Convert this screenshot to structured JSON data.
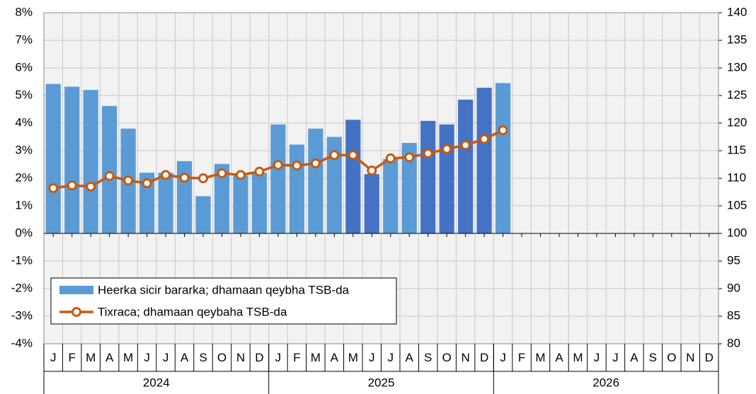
{
  "chart_data": {
    "type": "bar",
    "categories": [
      "J",
      "F",
      "M",
      "A",
      "M",
      "J",
      "J",
      "A",
      "S",
      "O",
      "N",
      "D",
      "J",
      "F",
      "M",
      "A",
      "M",
      "J",
      "J",
      "A",
      "S",
      "O",
      "N",
      "D",
      "J",
      "F",
      "M",
      "A",
      "M",
      "J",
      "J",
      "A",
      "S",
      "O",
      "N",
      "D"
    ],
    "year_labels": [
      "2024",
      "2025",
      "2026"
    ],
    "series": [
      {
        "name": "Heerka sicir bararka; dhamaan qeybha TSB-da",
        "type": "bar",
        "color": "#5b9bd5",
        "colors": [
          "#5b9bd5",
          "#5b9bd5",
          "#5b9bd5",
          "#5b9bd5",
          "#5b9bd5",
          "#5b9bd5",
          "#5b9bd5",
          "#5b9bd5",
          "#5b9bd5",
          "#5b9bd5",
          "#5b9bd5",
          "#5b9bd5",
          "#5b9bd5",
          "#5b9bd5",
          "#5b9bd5",
          "#5b9bd5",
          "#4472c4",
          "#4472c4",
          "#5b9bd5",
          "#5b9bd5",
          "#4472c4",
          "#4472c4",
          "#4472c4",
          "#4472c4",
          "#5b9bd5",
          null,
          null,
          null,
          null,
          null,
          null,
          null,
          null,
          null,
          null,
          null
        ],
        "values": [
          5.42,
          5.32,
          5.2,
          4.62,
          3.8,
          2.2,
          2.2,
          2.62,
          1.35,
          2.52,
          2.1,
          2.2,
          3.95,
          3.22,
          3.8,
          3.5,
          4.12,
          2.15,
          2.7,
          3.28,
          4.08,
          3.95,
          4.85,
          5.28,
          5.45,
          null,
          null,
          null,
          null,
          null,
          null,
          null,
          null,
          null,
          null,
          null
        ]
      },
      {
        "name": "Tixraca; dhamaan qeybaha TSB-da",
        "type": "line",
        "axis": "y2",
        "color": "#c55a11",
        "values": [
          108.2,
          108.7,
          108.5,
          110.4,
          109.6,
          109.1,
          110.6,
          110.1,
          110,
          110.9,
          110.6,
          111.2,
          112.4,
          112.3,
          112.7,
          114.2,
          114.2,
          111.4,
          113.6,
          113.8,
          114.5,
          115.3,
          116,
          117.1,
          118.7,
          null,
          null,
          null,
          null,
          null,
          null,
          null,
          null,
          null,
          null,
          null
        ]
      }
    ],
    "ylim": [
      -4,
      8
    ],
    "yticks": [
      {
        "value": -4,
        "label": "-4%"
      },
      {
        "value": -3,
        "label": "-3%"
      },
      {
        "value": -2,
        "label": "-2%"
      },
      {
        "value": -1,
        "label": "-1%"
      },
      {
        "value": 0,
        "label": "0%"
      },
      {
        "value": 1,
        "label": "1%"
      },
      {
        "value": 2,
        "label": "2%"
      },
      {
        "value": 3,
        "label": "3%"
      },
      {
        "value": 4,
        "label": "4%"
      },
      {
        "value": 5,
        "label": "5%"
      },
      {
        "value": 6,
        "label": "6%"
      },
      {
        "value": 7,
        "label": "7%"
      },
      {
        "value": 8,
        "label": "8%"
      }
    ],
    "y2lim": [
      80,
      140
    ],
    "y2ticks": [
      80,
      85,
      90,
      95,
      100,
      105,
      110,
      115,
      120,
      125,
      130,
      135,
      140
    ],
    "grid": true,
    "legend": "lower left"
  }
}
